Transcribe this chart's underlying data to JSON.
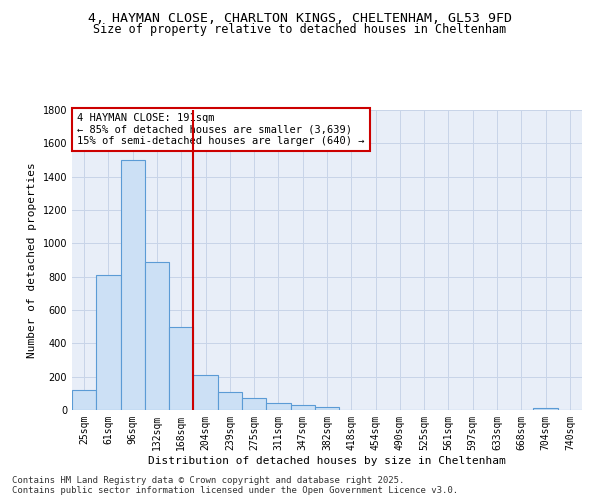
{
  "title_line1": "4, HAYMAN CLOSE, CHARLTON KINGS, CHELTENHAM, GL53 9FD",
  "title_line2": "Size of property relative to detached houses in Cheltenham",
  "xlabel": "Distribution of detached houses by size in Cheltenham",
  "ylabel": "Number of detached properties",
  "categories": [
    "25sqm",
    "61sqm",
    "96sqm",
    "132sqm",
    "168sqm",
    "204sqm",
    "239sqm",
    "275sqm",
    "311sqm",
    "347sqm",
    "382sqm",
    "418sqm",
    "454sqm",
    "490sqm",
    "525sqm",
    "561sqm",
    "597sqm",
    "633sqm",
    "668sqm",
    "704sqm",
    "740sqm"
  ],
  "values": [
    120,
    810,
    1500,
    890,
    500,
    210,
    110,
    70,
    45,
    30,
    20,
    0,
    0,
    0,
    0,
    0,
    0,
    0,
    0,
    10,
    0
  ],
  "bar_color": "#cce0f5",
  "bar_edge_color": "#5b9bd5",
  "vline_x": 4.5,
  "vline_color": "#cc0000",
  "annotation_text": "4 HAYMAN CLOSE: 191sqm\n← 85% of detached houses are smaller (3,639)\n15% of semi-detached houses are larger (640) →",
  "annotation_box_color": "white",
  "annotation_box_edge_color": "#cc0000",
  "ylim": [
    0,
    1800
  ],
  "yticks": [
    0,
    200,
    400,
    600,
    800,
    1000,
    1200,
    1400,
    1600,
    1800
  ],
  "grid_color": "#c8d4e8",
  "background_color": "#e8eef8",
  "footer_line1": "Contains HM Land Registry data © Crown copyright and database right 2025.",
  "footer_line2": "Contains public sector information licensed under the Open Government Licence v3.0.",
  "title_fontsize": 9.5,
  "subtitle_fontsize": 8.5,
  "axis_label_fontsize": 8,
  "tick_fontsize": 7,
  "annotation_fontsize": 7.5,
  "footer_fontsize": 6.5
}
